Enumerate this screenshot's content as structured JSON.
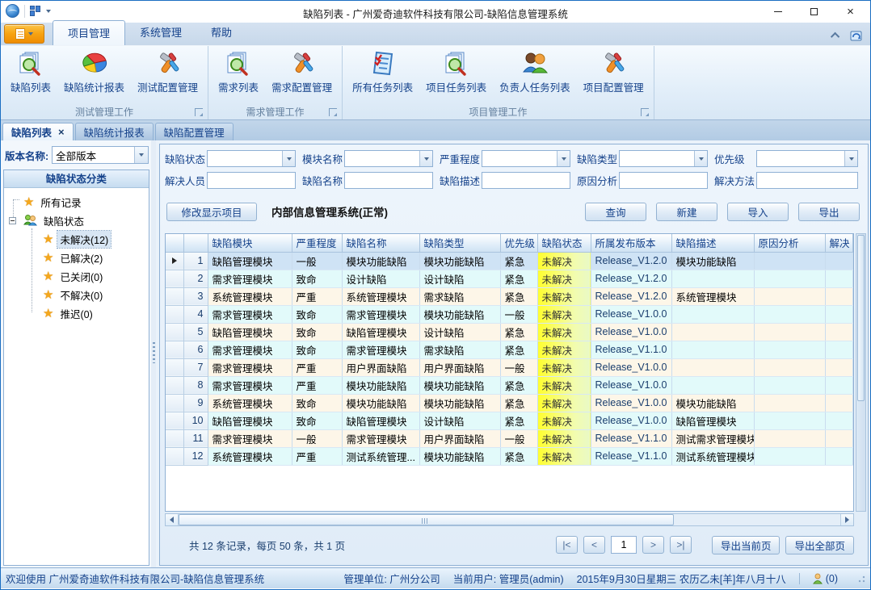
{
  "window": {
    "title": "缺陷列表 - 广州爱奇迪软件科技有限公司-缺陷信息管理系统"
  },
  "icons": {
    "dropdown_arrow": "▾",
    "close_tab": "×",
    "star": "★"
  },
  "ribbon": {
    "tabs": [
      {
        "label": "项目管理",
        "active": true
      },
      {
        "label": "系统管理",
        "active": false
      },
      {
        "label": "帮助",
        "active": false
      }
    ],
    "groups": [
      {
        "label": "测试管理工作",
        "buttons": [
          {
            "label": "缺陷列表",
            "icon": "doc-search-icon"
          },
          {
            "label": "缺陷统计报表",
            "icon": "pie-chart-icon"
          },
          {
            "label": "测试配置管理",
            "icon": "tools-icon"
          }
        ]
      },
      {
        "label": "需求管理工作",
        "buttons": [
          {
            "label": "需求列表",
            "icon": "doc-search-icon"
          },
          {
            "label": "需求配置管理",
            "icon": "tools-icon"
          }
        ]
      },
      {
        "label": "项目管理工作",
        "buttons": [
          {
            "label": "所有任务列表",
            "icon": "checklist-icon"
          },
          {
            "label": "项目任务列表",
            "icon": "doc-search-icon"
          },
          {
            "label": "负责人任务列表",
            "icon": "people-icon"
          },
          {
            "label": "项目配置管理",
            "icon": "tools-icon"
          }
        ]
      }
    ]
  },
  "doc_tabs": [
    {
      "label": "缺陷列表",
      "active": true,
      "closable": true
    },
    {
      "label": "缺陷统计报表",
      "active": false,
      "closable": false
    },
    {
      "label": "缺陷配置管理",
      "active": false,
      "closable": false
    }
  ],
  "sidebar": {
    "version_label": "版本名称:",
    "version_value": "全部版本",
    "panel_title": "缺陷状态分类",
    "tree": [
      {
        "label": "所有记录",
        "icon": "star-icon",
        "level": 0,
        "selected": false,
        "expander": false
      },
      {
        "label": "缺陷状态",
        "icon": "people-icon",
        "level": 0,
        "selected": false,
        "expander": true
      },
      {
        "label": "未解决(12)",
        "icon": "star-icon",
        "level": 1,
        "selected": true,
        "expander": false
      },
      {
        "label": "已解决(2)",
        "icon": "star-icon",
        "level": 1,
        "selected": false,
        "expander": false
      },
      {
        "label": "已关闭(0)",
        "icon": "star-icon",
        "level": 1,
        "selected": false,
        "expander": false
      },
      {
        "label": "不解决(0)",
        "icon": "star-icon",
        "level": 1,
        "selected": false,
        "expander": false
      },
      {
        "label": "推迟(0)",
        "icon": "star-icon",
        "level": 1,
        "selected": false,
        "expander": false
      }
    ]
  },
  "filters": {
    "row1": [
      {
        "label": "缺陷状态",
        "type": "select",
        "value": ""
      },
      {
        "label": "模块名称",
        "type": "select",
        "value": ""
      },
      {
        "label": "严重程度",
        "type": "select",
        "value": ""
      },
      {
        "label": "缺陷类型",
        "type": "select",
        "value": ""
      },
      {
        "label": "优先级",
        "type": "select",
        "value": ""
      }
    ],
    "row2": [
      {
        "label": "解决人员",
        "type": "text",
        "value": ""
      },
      {
        "label": "缺陷名称",
        "type": "text",
        "value": ""
      },
      {
        "label": "缺陷描述",
        "type": "text",
        "value": ""
      },
      {
        "label": "原因分析",
        "type": "text",
        "value": ""
      },
      {
        "label": "解决方法",
        "type": "text",
        "value": ""
      }
    ]
  },
  "toolbar": {
    "modify_button": "修改显示项目",
    "system_label": "内部信息管理系统(正常)",
    "buttons": [
      "查询",
      "新建",
      "导入",
      "导出"
    ]
  },
  "table": {
    "columns": [
      {
        "key": "sel",
        "label": ""
      },
      {
        "key": "num",
        "label": ""
      },
      {
        "key": "module",
        "label": "缺陷模块"
      },
      {
        "key": "severity",
        "label": "严重程度"
      },
      {
        "key": "name",
        "label": "缺陷名称"
      },
      {
        "key": "type",
        "label": "缺陷类型"
      },
      {
        "key": "priority",
        "label": "优先级"
      },
      {
        "key": "status",
        "label": "缺陷状态"
      },
      {
        "key": "release",
        "label": "所属发布版本"
      },
      {
        "key": "desc",
        "label": "缺陷描述"
      },
      {
        "key": "analysis",
        "label": "原因分析"
      },
      {
        "key": "solution",
        "label": "解决"
      }
    ],
    "rows": [
      {
        "num": "1",
        "module": "缺陷管理模块",
        "severity": "一般",
        "name": "模块功能缺陷",
        "type": "模块功能缺陷",
        "priority": "紧急",
        "status": "未解决",
        "release": "Release_V1.2.0",
        "desc": "模块功能缺陷",
        "analysis": "",
        "solution": "",
        "selected": true
      },
      {
        "num": "2",
        "module": "需求管理模块",
        "severity": "致命",
        "name": "设计缺陷",
        "type": "设计缺陷",
        "priority": "紧急",
        "status": "未解决",
        "release": "Release_V1.2.0",
        "desc": "",
        "analysis": "",
        "solution": "",
        "selected": false
      },
      {
        "num": "3",
        "module": "系统管理模块",
        "severity": "严重",
        "name": "系统管理模块",
        "type": "需求缺陷",
        "priority": "紧急",
        "status": "未解决",
        "release": "Release_V1.2.0",
        "desc": "系统管理模块",
        "analysis": "",
        "solution": "",
        "selected": false
      },
      {
        "num": "4",
        "module": "需求管理模块",
        "severity": "致命",
        "name": "需求管理模块",
        "type": "模块功能缺陷",
        "priority": "一般",
        "status": "未解决",
        "release": "Release_V1.0.0",
        "desc": "",
        "analysis": "",
        "solution": "",
        "selected": false
      },
      {
        "num": "5",
        "module": "缺陷管理模块",
        "severity": "致命",
        "name": "缺陷管理模块",
        "type": "设计缺陷",
        "priority": "紧急",
        "status": "未解决",
        "release": "Release_V1.0.0",
        "desc": "",
        "analysis": "",
        "solution": "",
        "selected": false
      },
      {
        "num": "6",
        "module": "需求管理模块",
        "severity": "致命",
        "name": "需求管理模块",
        "type": "需求缺陷",
        "priority": "紧急",
        "status": "未解决",
        "release": "Release_V1.1.0",
        "desc": "",
        "analysis": "",
        "solution": "",
        "selected": false
      },
      {
        "num": "7",
        "module": "需求管理模块",
        "severity": "严重",
        "name": "用户界面缺陷",
        "type": "用户界面缺陷",
        "priority": "一般",
        "status": "未解决",
        "release": "Release_V1.0.0",
        "desc": "",
        "analysis": "",
        "solution": "",
        "selected": false
      },
      {
        "num": "8",
        "module": "需求管理模块",
        "severity": "严重",
        "name": "模块功能缺陷",
        "type": "模块功能缺陷",
        "priority": "紧急",
        "status": "未解决",
        "release": "Release_V1.0.0",
        "desc": "",
        "analysis": "",
        "solution": "",
        "selected": false
      },
      {
        "num": "9",
        "module": "系统管理模块",
        "severity": "致命",
        "name": "模块功能缺陷",
        "type": "模块功能缺陷",
        "priority": "紧急",
        "status": "未解决",
        "release": "Release_V1.0.0",
        "desc": "模块功能缺陷",
        "analysis": "",
        "solution": "",
        "selected": false
      },
      {
        "num": "10",
        "module": "缺陷管理模块",
        "severity": "致命",
        "name": "缺陷管理模块",
        "type": "设计缺陷",
        "priority": "紧急",
        "status": "未解决",
        "release": "Release_V1.0.0",
        "desc": "缺陷管理模块",
        "analysis": "",
        "solution": "",
        "selected": false
      },
      {
        "num": "11",
        "module": "需求管理模块",
        "severity": "一般",
        "name": "需求管理模块",
        "type": "用户界面缺陷",
        "priority": "一般",
        "status": "未解决",
        "release": "Release_V1.1.0",
        "desc": "测试需求管理模块",
        "analysis": "",
        "solution": "",
        "selected": false
      },
      {
        "num": "12",
        "module": "系统管理模块",
        "severity": "严重",
        "name": "测试系统管理...",
        "type": "模块功能缺陷",
        "priority": "紧急",
        "status": "未解决",
        "release": "Release_V1.1.0",
        "desc": "测试系统管理模块...",
        "analysis": "",
        "solution": "",
        "selected": false
      }
    ]
  },
  "pager": {
    "summary": "共 12 条记录，每页 50 条，共 1 页",
    "first": "|<",
    "prev": "<",
    "page": "1",
    "next": ">",
    "last": ">|",
    "export_current": "导出当前页",
    "export_all": "导出全部页"
  },
  "statusbar": {
    "welcome": "欢迎使用 广州爱奇迪软件科技有限公司-缺陷信息管理系统",
    "org": "管理单位: 广州分公司",
    "user": "当前用户: 管理员(admin)",
    "date": "2015年9月30日星期三 农历乙未[羊]年八月十八",
    "online_count": "(0)"
  }
}
